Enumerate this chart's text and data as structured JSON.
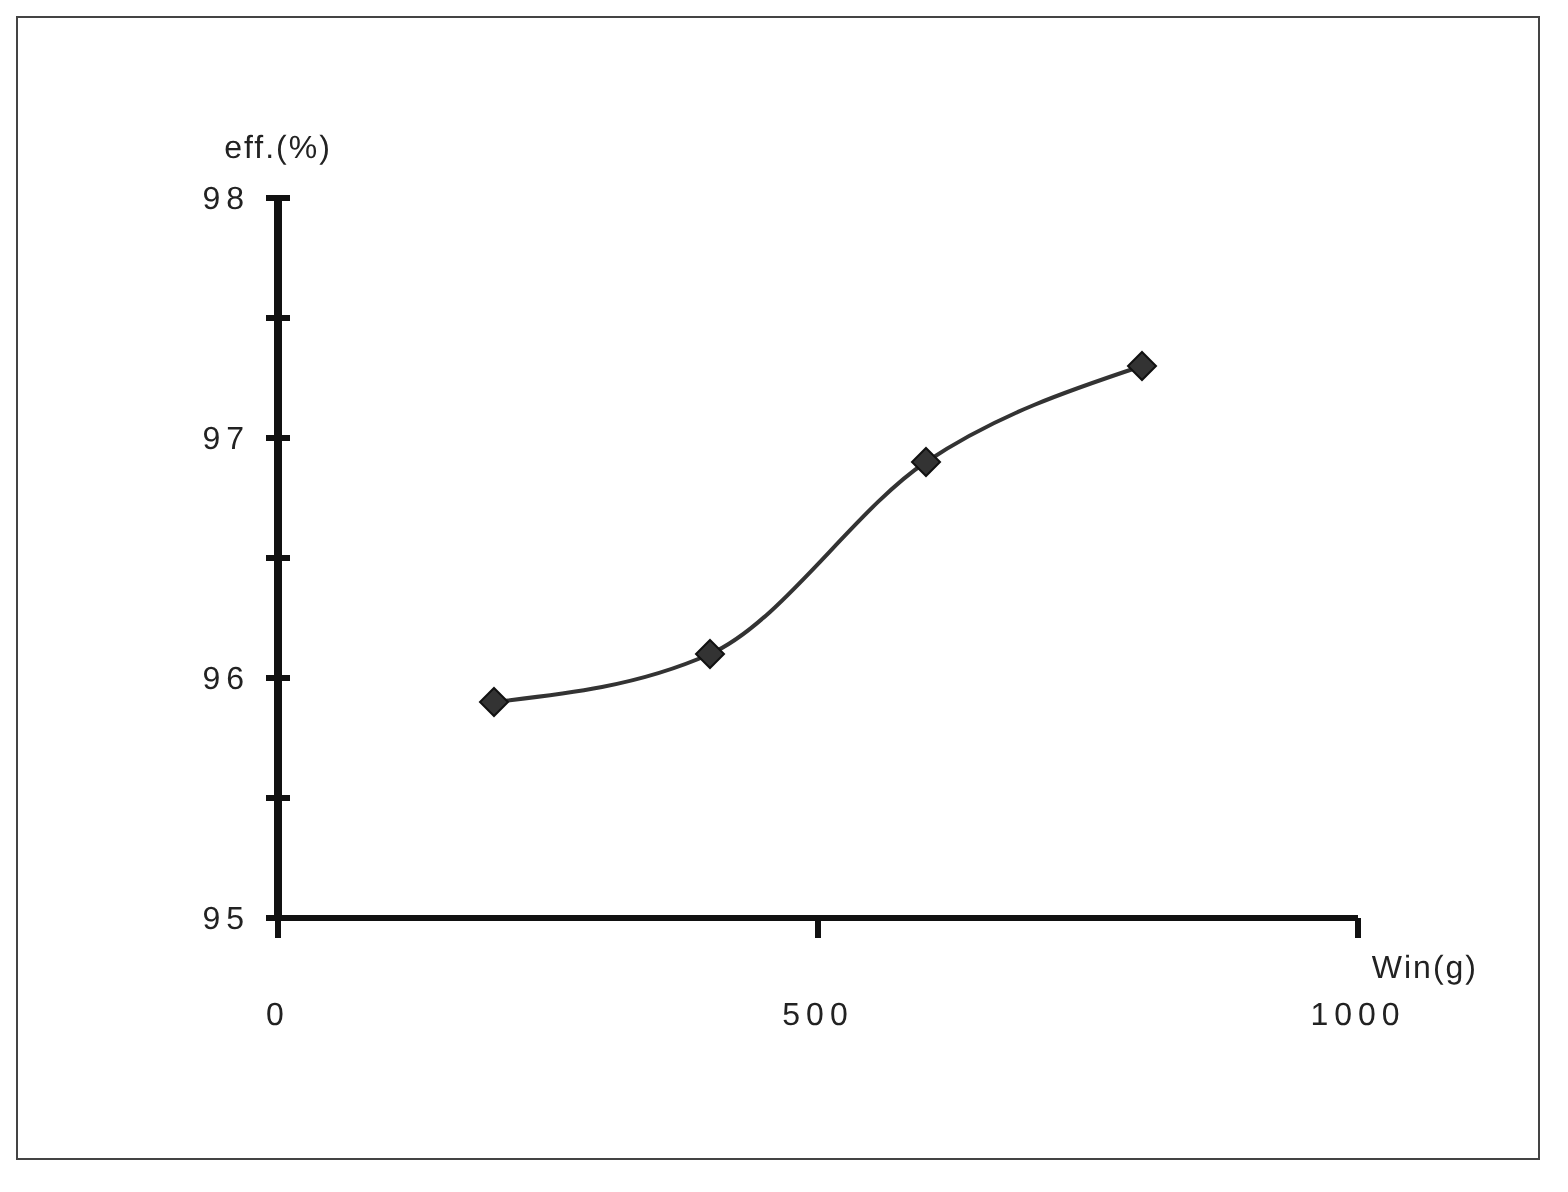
{
  "chart_data": {
    "type": "line",
    "xlabel": "Win(g)",
    "ylabel": "eff.(%)",
    "x": [
      200,
      400,
      600,
      800
    ],
    "series": [
      {
        "color": "#333333",
        "values": [
          95.9,
          96.1,
          96.9,
          97.3
        ]
      }
    ],
    "xlim": [
      0,
      1000
    ],
    "xticks": [
      0,
      500,
      1000
    ],
    "ylim": [
      95,
      98
    ],
    "yticks": [
      95,
      {
        "value": 95.5,
        "label": null
      },
      96,
      {
        "value": 96.5,
        "label": null
      },
      97,
      {
        "value": 97.5,
        "label": null
      },
      98
    ],
    "grid": false,
    "legend": false,
    "marker": "diamond",
    "line_style": "solid"
  }
}
